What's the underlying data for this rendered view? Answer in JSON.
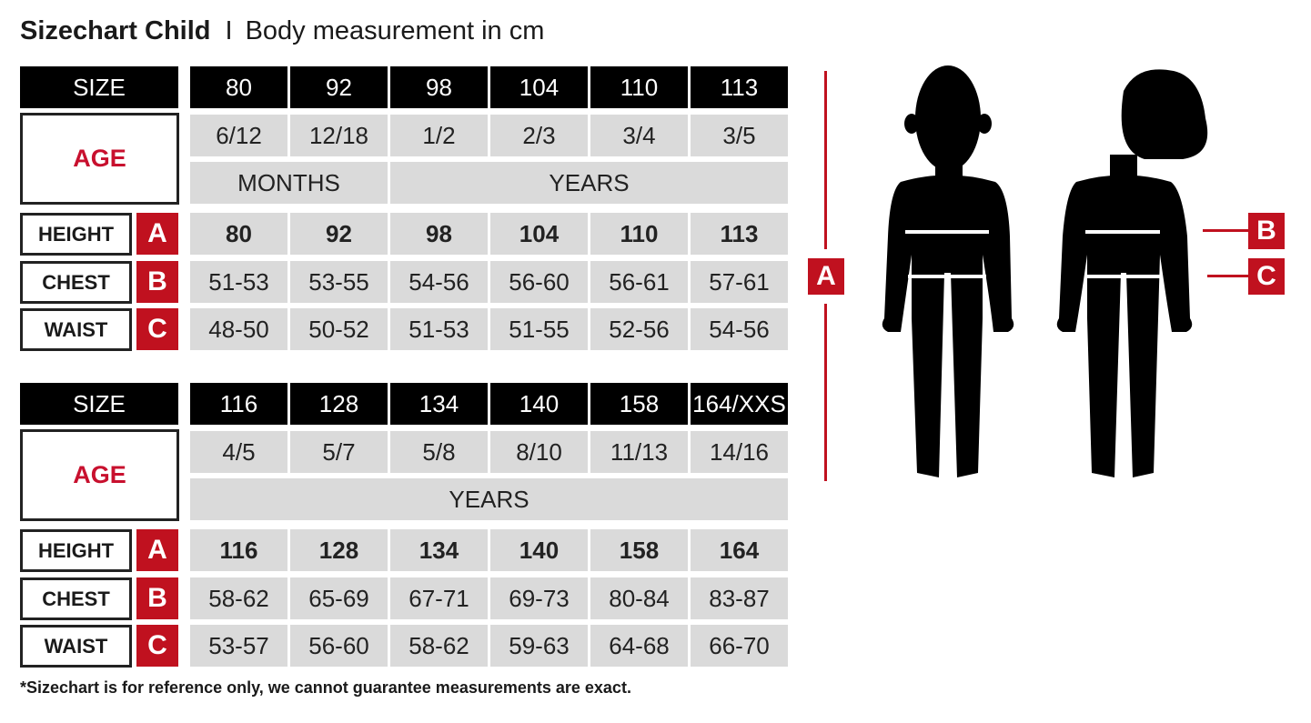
{
  "header": {
    "title": "Sizechart Child",
    "separator": "I",
    "subtitle": "Body measurement in cm"
  },
  "labels": {
    "size": "SIZE",
    "age": "AGE",
    "height": "HEIGHT",
    "chest": "CHEST",
    "waist": "WAIST",
    "a": "A",
    "b": "B",
    "c": "C"
  },
  "tables": [
    {
      "sizes": [
        "80",
        "92",
        "98",
        "104",
        "110",
        "113"
      ],
      "ages": [
        "6/12",
        "12/18",
        "1/2",
        "2/3",
        "3/4",
        "3/5"
      ],
      "age_units": [
        {
          "label": "MONTHS",
          "span": 2
        },
        {
          "label": "YEARS",
          "span": 4
        }
      ],
      "height": [
        "80",
        "92",
        "98",
        "104",
        "110",
        "113"
      ],
      "chest": [
        "51-53",
        "53-55",
        "54-56",
        "56-60",
        "56-61",
        "57-61"
      ],
      "waist": [
        "48-50",
        "50-52",
        "51-53",
        "51-55",
        "52-56",
        "54-56"
      ]
    },
    {
      "sizes": [
        "116",
        "128",
        "134",
        "140",
        "158",
        "164/XXS"
      ],
      "ages": [
        "4/5",
        "5/7",
        "5/8",
        "8/10",
        "11/13",
        "14/16"
      ],
      "age_units": [
        {
          "label": "YEARS",
          "span": 6
        }
      ],
      "height": [
        "116",
        "128",
        "134",
        "140",
        "158",
        "164"
      ],
      "chest": [
        "58-62",
        "65-69",
        "67-71",
        "69-73",
        "80-84",
        "83-87"
      ],
      "waist": [
        "53-57",
        "56-60",
        "58-62",
        "59-63",
        "64-68",
        "66-70"
      ]
    }
  ],
  "diagram": {
    "height_marker": "A",
    "chest_marker": "B",
    "waist_marker": "C",
    "figures": [
      "boy-silhouette",
      "girl-silhouette"
    ]
  },
  "footnote": "*Sizechart is for reference only, we cannot guarantee measurements are exact.",
  "colors": {
    "accent_red": "#c0111f",
    "header_black": "#000000",
    "cell_gray": "#dadada"
  }
}
